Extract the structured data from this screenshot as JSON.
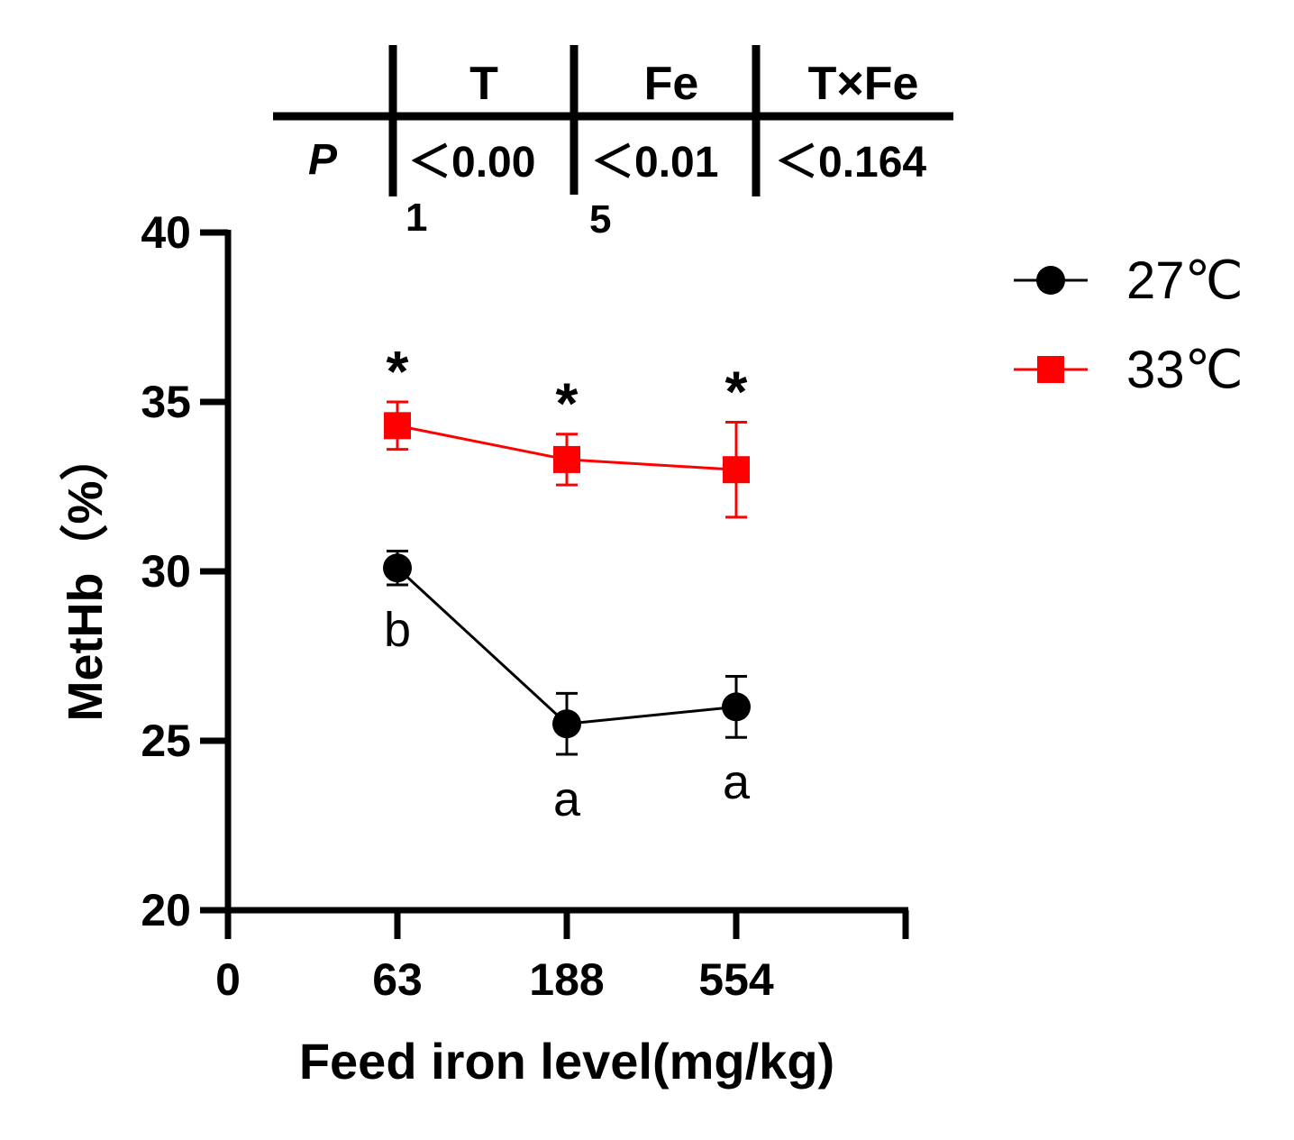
{
  "table": {
    "row_label": "P",
    "col1_header": "T",
    "col2_header": "Fe",
    "col3_header": "T×Fe",
    "col1_value": "＜0.00",
    "col1_overflow": "1",
    "col2_value": "＜0.01",
    "col2_overflow": "5",
    "col3_value": "＜0.164"
  },
  "chart_data": {
    "type": "line",
    "xlabel": "Feed iron level(mg/kg)",
    "ylabel": "MetHb（%）",
    "x_ticks": [
      "0",
      "63",
      "188",
      "554"
    ],
    "y_ticks": [
      "20",
      "25",
      "30",
      "35",
      "40"
    ],
    "ylim": [
      20,
      40
    ],
    "grid": false,
    "legend_position": "top-right",
    "categories": [
      "63",
      "188",
      "554"
    ],
    "series": [
      {
        "name": "27℃",
        "color": "#000000",
        "marker": "circle",
        "values": [
          30.1,
          25.5,
          26.0
        ],
        "error": [
          0.5,
          0.9,
          0.9
        ],
        "annotations": [
          "b",
          "a",
          "a"
        ]
      },
      {
        "name": "33℃",
        "color": "#ff0000",
        "marker": "square",
        "values": [
          34.3,
          33.3,
          33.0
        ],
        "error": [
          0.7,
          0.75,
          1.4
        ],
        "annotations": [
          "*",
          "*",
          "*"
        ]
      }
    ]
  }
}
